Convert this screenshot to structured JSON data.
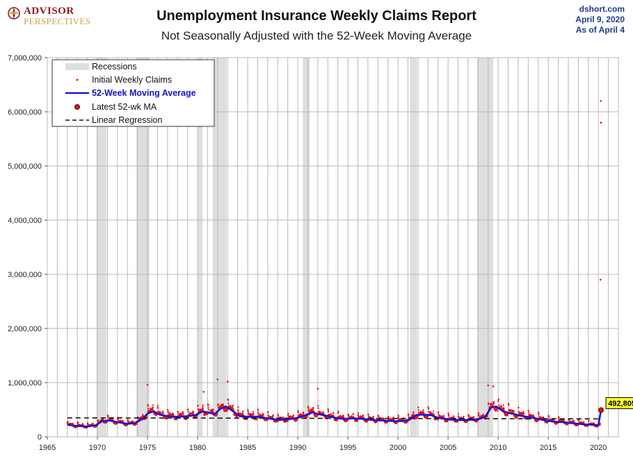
{
  "header": {
    "logo_line1": "ADVISOR",
    "logo_line2": "PERSPECTIVES",
    "title": "Unemployment Insurance Weekly Claims Report",
    "subtitle": "Not Seasonally Adjusted with the 52-Week Moving Average",
    "source_lines": [
      "dshort.com",
      "April 9, 2020",
      "As  of April 4"
    ]
  },
  "colors": {
    "claims": "#e81010",
    "moving_average": "#1515d8",
    "recession": "#dedede",
    "regression": "#111111",
    "callout_bg": "#ffff33"
  },
  "chart_data": {
    "type": "scatter",
    "xlim": [
      1965,
      2022
    ],
    "ylim": [
      0,
      7000000
    ],
    "x_ticks": [
      1965,
      1970,
      1975,
      1980,
      1985,
      1990,
      1995,
      2000,
      2005,
      2010,
      2015,
      2020
    ],
    "y_ticks": [
      0,
      1000000,
      2000000,
      3000000,
      4000000,
      5000000,
      6000000,
      7000000
    ],
    "y_tick_labels": [
      "0",
      "1,000,000",
      "2,000,000",
      "3,000,000",
      "4,000,000",
      "5,000,000",
      "6,000,000",
      "7,000,000"
    ],
    "grid": true,
    "legend": {
      "placement": "top-left",
      "entries": [
        "Recessions",
        "Initial Weekly Claims",
        "52-Week Moving Average",
        "Latest 52-wk MA",
        "Linear Regression"
      ]
    },
    "recessions": [
      [
        1969.9,
        1970.9
      ],
      [
        1973.9,
        1975.2
      ],
      [
        1980.0,
        1980.5
      ],
      [
        1981.5,
        1982.9
      ],
      [
        1990.5,
        1991.2
      ],
      [
        2001.2,
        2001.9
      ],
      [
        2007.9,
        2009.5
      ]
    ],
    "moving_average": {
      "name": "52-Week Moving Average",
      "x": [
        1967.0,
        1968.0,
        1969.0,
        1969.8,
        1970.5,
        1971.2,
        1972.0,
        1973.0,
        1973.7,
        1974.5,
        1975.0,
        1975.6,
        1976.2,
        1977.0,
        1978.0,
        1979.0,
        1979.8,
        1980.5,
        1981.2,
        1981.7,
        1982.3,
        1982.8,
        1983.5,
        1984.2,
        1985.0,
        1986.0,
        1987.0,
        1988.0,
        1989.0,
        1990.0,
        1990.8,
        1991.5,
        1992.0,
        1992.8,
        1993.5,
        1994.5,
        1995.5,
        1996.5,
        1997.5,
        1998.5,
        1999.5,
        2000.5,
        2001.2,
        2001.8,
        2002.5,
        2003.3,
        2004.0,
        2005.0,
        2006.0,
        2007.0,
        2008.0,
        2008.7,
        2009.3,
        2009.8,
        2010.5,
        2011.5,
        2012.5,
        2013.5,
        2014.5,
        2015.5,
        2016.5,
        2017.5,
        2018.5,
        2019.5,
        2020.0
      ],
      "values": [
        220000,
        200000,
        190000,
        210000,
        290000,
        300000,
        270000,
        240000,
        250000,
        330000,
        430000,
        470000,
        410000,
        380000,
        370000,
        380000,
        400000,
        470000,
        440000,
        420000,
        520000,
        560000,
        480000,
        380000,
        370000,
        370000,
        340000,
        310000,
        320000,
        350000,
        400000,
        450000,
        420000,
        390000,
        360000,
        330000,
        340000,
        330000,
        310000,
        300000,
        290000,
        290000,
        320000,
        400000,
        410000,
        400000,
        350000,
        320000,
        310000,
        310000,
        320000,
        370000,
        540000,
        560000,
        470000,
        420000,
        380000,
        350000,
        310000,
        280000,
        270000,
        250000,
        230000,
        220000,
        217000
      ]
    },
    "moving_average_latest": {
      "x": 2020.27,
      "y": 492805,
      "label": "492,805"
    },
    "regression": {
      "name": "Linear Regression",
      "x": [
        1967.0,
        2020.27
      ],
      "y": [
        350000,
        330000
      ]
    },
    "claims_extremes": [
      {
        "x": 1975.0,
        "y": 960000
      },
      {
        "x": 1980.6,
        "y": 830000
      },
      {
        "x": 1982.0,
        "y": 1060000
      },
      {
        "x": 1983.0,
        "y": 1020000
      },
      {
        "x": 1992.0,
        "y": 890000
      },
      {
        "x": 2009.0,
        "y": 950000
      },
      {
        "x": 2009.5,
        "y": 930000
      },
      {
        "x": 2020.21,
        "y": 2900000
      },
      {
        "x": 2020.24,
        "y": 6200000
      },
      {
        "x": 2020.26,
        "y": 5800000
      }
    ]
  }
}
